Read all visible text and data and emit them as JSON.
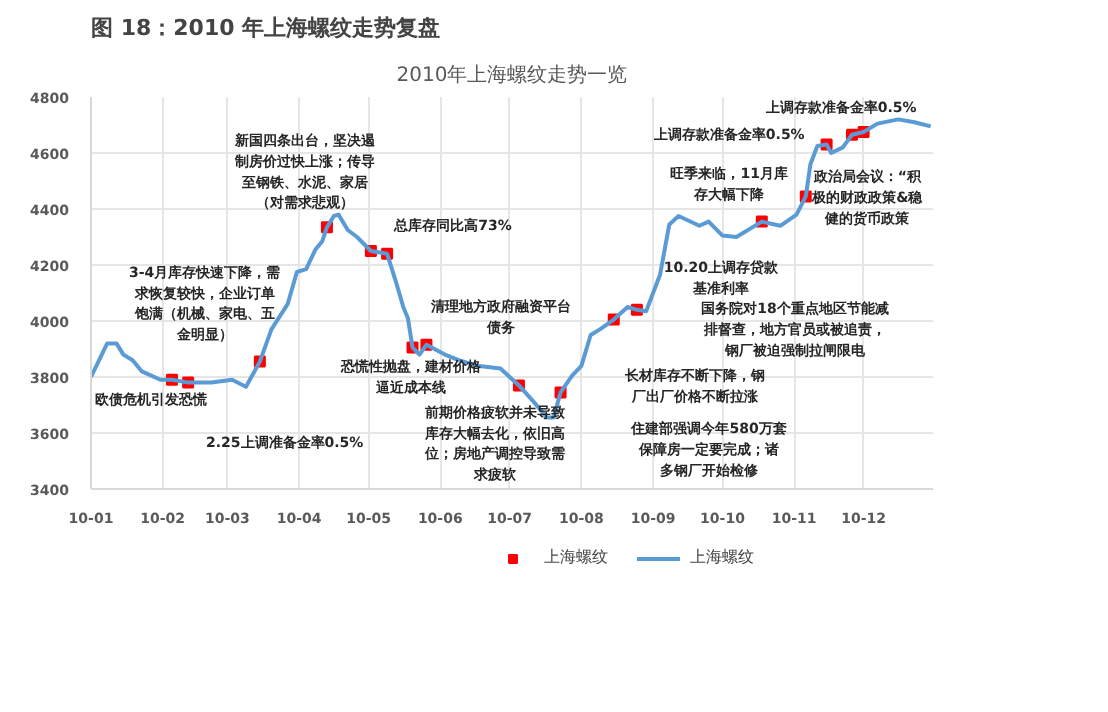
{
  "chart_data": {
    "type": "line",
    "title": "2010年上海螺纹走势一览",
    "xlim": [
      "2010-01-01",
      "2010-12-31"
    ],
    "ylim": [
      3400,
      4800
    ],
    "yticks": [
      3400,
      3600,
      3800,
      4000,
      4200,
      4400,
      4600,
      4800
    ],
    "xticks": [
      {
        "value": "2010-01-01",
        "label": "10-01"
      },
      {
        "value": "2010-02-01",
        "label": "10-02"
      },
      {
        "value": "2010-03-01",
        "label": "10-03"
      },
      {
        "value": "2010-04-01",
        "label": "10-04"
      },
      {
        "value": "2010-05-01",
        "label": "10-05"
      },
      {
        "value": "2010-06-01",
        "label": "10-06"
      },
      {
        "value": "2010-07-01",
        "label": "10-07"
      },
      {
        "value": "2010-08-01",
        "label": "10-08"
      },
      {
        "value": "2010-09-01",
        "label": "10-09"
      },
      {
        "value": "2010-10-01",
        "label": "10-10"
      },
      {
        "value": "2010-11-01",
        "label": "10-11"
      },
      {
        "value": "2010-12-01",
        "label": "10-12"
      }
    ],
    "grid": true,
    "legend": "bottom",
    "series": [
      {
        "name": "上海螺纹",
        "type": "scatter",
        "marker": "square",
        "color": "#ff0000",
        "x": [
          "2010-02-05",
          "2010-02-12",
          "2010-03-15",
          "2010-04-13",
          "2010-05-02",
          "2010-05-09",
          "2010-05-20",
          "2010-05-26",
          "2010-07-05",
          "2010-07-23",
          "2010-08-15",
          "2010-08-25",
          "2010-10-18",
          "2010-11-06",
          "2010-11-15",
          "2010-11-26",
          "2010-12-01"
        ],
        "values": [
          3790,
          3780,
          3855,
          4335,
          4250,
          4240,
          3905,
          3915,
          3770,
          3745,
          4005,
          4040,
          4355,
          4445,
          4630,
          4665,
          4675
        ]
      },
      {
        "name": "上海螺纹",
        "color": "#5b9bd5",
        "x": [
          "2010-01-01",
          "2010-01-08",
          "2010-01-12",
          "2010-01-15",
          "2010-01-19",
          "2010-01-23",
          "2010-01-31",
          "2010-02-05",
          "2010-02-12",
          "2010-02-22",
          "2010-03-03",
          "2010-03-09",
          "2010-03-15",
          "2010-03-20",
          "2010-03-27",
          "2010-03-31",
          "2010-04-04",
          "2010-04-08",
          "2010-04-11",
          "2010-04-13",
          "2010-04-16",
          "2010-04-18",
          "2010-04-22",
          "2010-04-26",
          "2010-05-02",
          "2010-05-09",
          "2010-05-13",
          "2010-05-16",
          "2010-05-18",
          "2010-05-20",
          "2010-05-23",
          "2010-05-26",
          "2010-06-03",
          "2010-06-09",
          "2010-06-17",
          "2010-06-27",
          "2010-07-05",
          "2010-07-11",
          "2010-07-17",
          "2010-07-20",
          "2010-07-23",
          "2010-07-28",
          "2010-08-01",
          "2010-08-05",
          "2010-08-09",
          "2010-08-15",
          "2010-08-21",
          "2010-08-25",
          "2010-08-29",
          "2010-09-04",
          "2010-09-08",
          "2010-09-12",
          "2010-09-21",
          "2010-09-25",
          "2010-10-01",
          "2010-10-07",
          "2010-10-18",
          "2010-10-26",
          "2010-11-02",
          "2010-11-06",
          "2010-11-08",
          "2010-11-11",
          "2010-11-15",
          "2010-11-17",
          "2010-11-22",
          "2010-11-26",
          "2010-12-01",
          "2010-12-07",
          "2010-12-16",
          "2010-12-23",
          "2010-12-30"
        ],
        "values": [
          3800,
          3920,
          3920,
          3880,
          3860,
          3820,
          3790,
          3790,
          3780,
          3780,
          3790,
          3765,
          3855,
          3970,
          4060,
          4175,
          4185,
          4255,
          4285,
          4335,
          4375,
          4380,
          4325,
          4300,
          4250,
          4240,
          4135,
          4050,
          4010,
          3905,
          3880,
          3915,
          3880,
          3860,
          3840,
          3830,
          3770,
          3715,
          3655,
          3655,
          3745,
          3805,
          3840,
          3950,
          3970,
          4005,
          4050,
          4040,
          4035,
          4165,
          4345,
          4375,
          4340,
          4355,
          4305,
          4300,
          4355,
          4340,
          4380,
          4445,
          4560,
          4625,
          4630,
          4600,
          4620,
          4665,
          4675,
          4705,
          4720,
          4710,
          4695
        ]
      }
    ],
    "annotations": [
      "图 18：2010 年上海螺纹走势复盘",
      "新国四条出台，坚决遏制房价过快上涨；传导至钢铁、水泥、家居（对需求悲观）",
      "总库存同比高73%",
      "3-4月库存快速下降，需求恢复较快，企业订单饱满（机械、家电、五金明显）",
      "欧债危机引发恐慌",
      "2.25上调准备金率0.5%",
      "清理地方政府融资平台债务",
      "恐慌性抛盘，建材价格逼近成本线",
      "前期价格疲软并未导致库存大幅去化，依旧高位；房地产调控导致需求疲软",
      "10.20上调存贷款基准利率",
      "国务院对18个重点地区节能减排督查，地方官员或被追责，钢厂被迫强制拉闸限电",
      "长材库存不断下降，钢厂出厂价格不断拉涨",
      "住建部强调今年580万套保障房一定要完成；诸多钢厂开始检修",
      "旺季来临，11月库存大幅下降",
      "上调存款准备金率0.5%",
      "上调存款准备金率0.5%",
      "政治局会议：“积极的财政政策&稳健的货币政策"
    ]
  }
}
